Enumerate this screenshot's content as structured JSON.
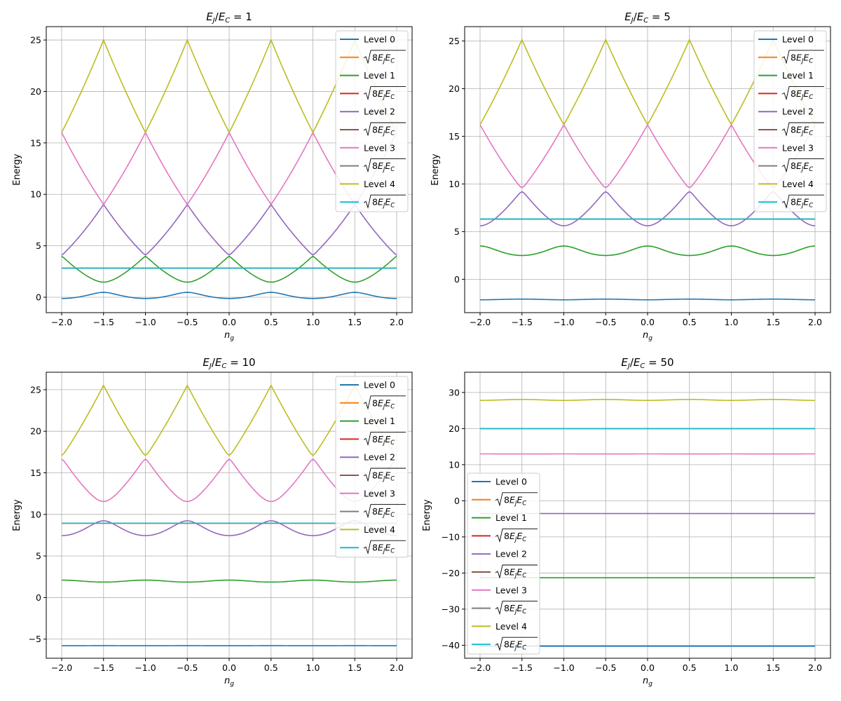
{
  "colors": {
    "Level 0": "#1f77b4",
    "sqrt_after_0": "#ff7f0e",
    "Level 1": "#2ca02c",
    "sqrt_after_1": "#d62728",
    "Level 2": "#9467bd",
    "sqrt_after_2": "#8c564b",
    "Level 3": "#e377c2",
    "sqrt_after_3": "#7f7f7f",
    "Level 4": "#bcbd22",
    "sqrt_after_4": "#17becf"
  },
  "legend_labels": [
    "Level 0",
    "√8E_JE_C",
    "Level 1",
    "√8E_JE_C",
    "Level 2",
    "√8E_JE_C",
    "Level 3",
    "√8E_JE_C",
    "Level 4",
    "√8E_JE_C"
  ],
  "chart_data": [
    {
      "type": "line",
      "title": "E_J/E_C = 1",
      "title_ratio": "1",
      "xlabel": "n_g",
      "ylabel": "Energy",
      "xlim": [
        -2.0,
        2.0
      ],
      "ylim": [
        -1.5,
        26.3
      ],
      "xticks": [
        -2.0,
        -1.5,
        -1.0,
        -0.5,
        0.0,
        0.5,
        1.0,
        1.5,
        2.0
      ],
      "yticks": [
        0,
        5,
        10,
        15,
        20,
        25
      ],
      "grid": true,
      "legend": "top-right",
      "ej": 1,
      "sqrt8EjEc": 2.83,
      "series": [
        {
          "name": "Level 0",
          "kind": "level",
          "level": 0
        },
        {
          "name": "√8E_JE_C",
          "kind": "constant",
          "value": 2.83
        },
        {
          "name": "Level 1",
          "kind": "level",
          "level": 1
        },
        {
          "name": "√8E_JE_C",
          "kind": "constant",
          "value": 2.83
        },
        {
          "name": "Level 2",
          "kind": "level",
          "level": 2
        },
        {
          "name": "√8E_JE_C",
          "kind": "constant",
          "value": 2.83
        },
        {
          "name": "Level 3",
          "kind": "level",
          "level": 3
        },
        {
          "name": "√8E_JE_C",
          "kind": "constant",
          "value": 2.83
        },
        {
          "name": "Level 4",
          "kind": "level",
          "level": 4
        },
        {
          "name": "√8E_JE_C",
          "kind": "constant",
          "value": 2.83
        }
      ]
    },
    {
      "type": "line",
      "title": "E_J/E_C = 5",
      "title_ratio": "5",
      "xlabel": "n_g",
      "ylabel": "Energy",
      "xlim": [
        -2.0,
        2.0
      ],
      "ylim": [
        -3.5,
        26.5
      ],
      "xticks": [
        -2.0,
        -1.5,
        -1.0,
        -0.5,
        0.0,
        0.5,
        1.0,
        1.5,
        2.0
      ],
      "yticks": [
        0,
        5,
        10,
        15,
        20,
        25
      ],
      "grid": true,
      "legend": "top-right",
      "ej": 5,
      "sqrt8EjEc": 6.32,
      "series": [
        {
          "name": "Level 0",
          "kind": "level",
          "level": 0
        },
        {
          "name": "√8E_JE_C",
          "kind": "constant",
          "value": 6.32
        },
        {
          "name": "Level 1",
          "kind": "level",
          "level": 1
        },
        {
          "name": "√8E_JE_C",
          "kind": "constant",
          "value": 6.32
        },
        {
          "name": "Level 2",
          "kind": "level",
          "level": 2
        },
        {
          "name": "√8E_JE_C",
          "kind": "constant",
          "value": 6.32
        },
        {
          "name": "Level 3",
          "kind": "level",
          "level": 3
        },
        {
          "name": "√8E_JE_C",
          "kind": "constant",
          "value": 6.32
        },
        {
          "name": "Level 4",
          "kind": "level",
          "level": 4
        },
        {
          "name": "√8E_JE_C",
          "kind": "constant",
          "value": 6.32
        }
      ]
    },
    {
      "type": "line",
      "title": "E_J/E_C = 10",
      "title_ratio": "10",
      "xlabel": "n_g",
      "ylabel": "Energy",
      "xlim": [
        -2.0,
        2.0
      ],
      "ylim": [
        -7.3,
        27.1
      ],
      "xticks": [
        -2.0,
        -1.5,
        -1.0,
        -0.5,
        0.0,
        0.5,
        1.0,
        1.5,
        2.0
      ],
      "yticks": [
        -5,
        0,
        5,
        10,
        15,
        20,
        25
      ],
      "grid": true,
      "legend": "top-right",
      "ej": 10,
      "sqrt8EjEc": 8.94,
      "series": [
        {
          "name": "Level 0",
          "kind": "level",
          "level": 0
        },
        {
          "name": "√8E_JE_C",
          "kind": "constant",
          "value": 8.94
        },
        {
          "name": "Level 1",
          "kind": "level",
          "level": 1
        },
        {
          "name": "√8E_JE_C",
          "kind": "constant",
          "value": 8.94
        },
        {
          "name": "Level 2",
          "kind": "level",
          "level": 2
        },
        {
          "name": "√8E_JE_C",
          "kind": "constant",
          "value": 8.94
        },
        {
          "name": "Level 3",
          "kind": "level",
          "level": 3
        },
        {
          "name": "√8E_JE_C",
          "kind": "constant",
          "value": 8.94
        },
        {
          "name": "Level 4",
          "kind": "level",
          "level": 4
        },
        {
          "name": "√8E_JE_C",
          "kind": "constant",
          "value": 8.94
        }
      ]
    },
    {
      "type": "line",
      "title": "E_J/E_C = 50",
      "title_ratio": "50",
      "xlabel": "n_g",
      "ylabel": "Energy",
      "xlim": [
        -2.0,
        2.0
      ],
      "ylim": [
        -43.6,
        35.6
      ],
      "xticks": [
        -2.0,
        -1.5,
        -1.0,
        -0.5,
        0.0,
        0.5,
        1.0,
        1.5,
        2.0
      ],
      "yticks": [
        -40,
        -30,
        -20,
        -10,
        0,
        10,
        20,
        30
      ],
      "grid": true,
      "legend": "lower-left",
      "ej": 50,
      "sqrt8EjEc": 20.0,
      "series": [
        {
          "name": "Level 0",
          "kind": "level",
          "level": 0
        },
        {
          "name": "√8E_JE_C",
          "kind": "constant",
          "value": 20.0
        },
        {
          "name": "Level 1",
          "kind": "level",
          "level": 1
        },
        {
          "name": "√8E_JE_C",
          "kind": "constant",
          "value": 20.0
        },
        {
          "name": "Level 2",
          "kind": "level",
          "level": 2
        },
        {
          "name": "√8E_JE_C",
          "kind": "constant",
          "value": 20.0
        },
        {
          "name": "Level 3",
          "kind": "level",
          "level": 3
        },
        {
          "name": "√8E_JE_C",
          "kind": "constant",
          "value": 20.0
        },
        {
          "name": "Level 4",
          "kind": "level",
          "level": 4
        },
        {
          "name": "√8E_JE_C",
          "kind": "constant",
          "value": 20.0
        }
      ]
    }
  ]
}
